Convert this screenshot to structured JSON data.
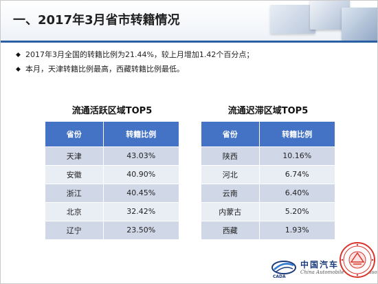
{
  "slide": {
    "title": "一、2017年3月省市转籍情况",
    "bullets": [
      {
        "marker": "◆",
        "text": "2017年3月全国的转籍比例为21.44%，较上月增加1.42个百分点；"
      },
      {
        "marker": "◆",
        "text": "本月，天津转籍比例最高，西藏转籍比例最低。"
      }
    ]
  },
  "left_table": {
    "title": "流通活跃区域TOP5",
    "headers": [
      "省份",
      "转籍比例"
    ],
    "rows": [
      [
        "天津",
        "43.03%"
      ],
      [
        "安徽",
        "40.90%"
      ],
      [
        "浙江",
        "40.45%"
      ],
      [
        "北京",
        "32.42%"
      ],
      [
        "辽宁",
        "23.50%"
      ]
    ]
  },
  "right_table": {
    "title": "流通迟滞区域TOP5",
    "headers": [
      "省份",
      "转籍比例"
    ],
    "rows": [
      [
        "陕西",
        "10.16%"
      ],
      [
        "河北",
        "6.74%"
      ],
      [
        "云南",
        "6.40%"
      ],
      [
        "内蒙古",
        "5.20%"
      ],
      [
        "西藏",
        "1.93%"
      ]
    ]
  },
  "footer": {
    "logo_cn": "中国汽车",
    "logo_en": "China Automobile Dealers Association",
    "logo_abbr": "CADA",
    "seal_icon": "association-seal-icon",
    "logo_icon": "cada-logo-icon"
  },
  "colors": {
    "table_header": "#4472c4",
    "row_dark": "#d0d8e8",
    "row_light": "#e9edf4",
    "accent_line": "#2b5fa3",
    "seal_red": "#d8342b"
  }
}
